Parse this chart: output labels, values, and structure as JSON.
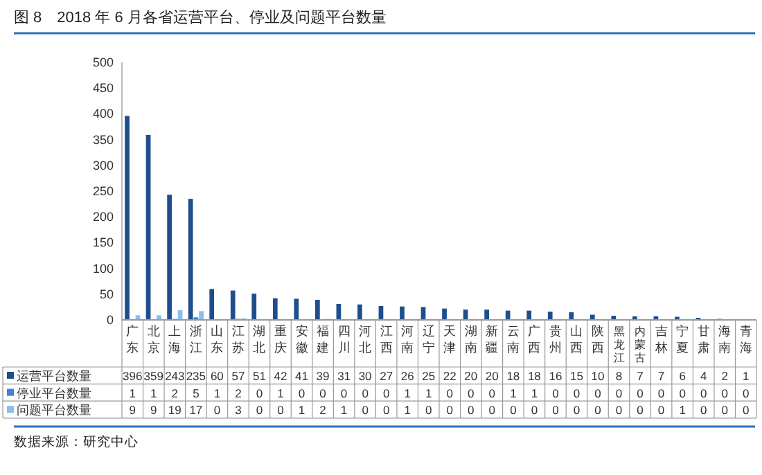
{
  "chart_data": {
    "type": "bar",
    "title": "图 8　2018 年 6 月各省运营平台、停业及问题平台数量",
    "categories": [
      "广东",
      "北京",
      "上海",
      "浙江",
      "山东",
      "江苏",
      "湖北",
      "重庆",
      "安徽",
      "福建",
      "四川",
      "河北",
      "江西",
      "河南",
      "辽宁",
      "天津",
      "湖南",
      "新疆",
      "云南",
      "广西",
      "贵州",
      "山西",
      "陕西",
      "黑龙江",
      "内蒙古",
      "吉林",
      "宁夏",
      "甘肃",
      "海南",
      "青海"
    ],
    "series": [
      {
        "name": "运营平台数量",
        "color": "#1f4e8c",
        "values": [
          396,
          359,
          243,
          235,
          60,
          57,
          51,
          42,
          41,
          39,
          31,
          30,
          27,
          26,
          25,
          22,
          20,
          20,
          18,
          18,
          16,
          15,
          10,
          8,
          7,
          7,
          6,
          4,
          2,
          1
        ]
      },
      {
        "name": "停业平台数量",
        "color": "#3a86d4",
        "values": [
          1,
          1,
          2,
          5,
          1,
          2,
          0,
          1,
          0,
          0,
          0,
          0,
          0,
          1,
          1,
          0,
          0,
          0,
          1,
          1,
          0,
          0,
          0,
          0,
          0,
          0,
          0,
          0,
          0,
          0
        ]
      },
      {
        "name": "问题平台数量",
        "color": "#86bff0",
        "values": [
          9,
          9,
          19,
          17,
          0,
          3,
          0,
          0,
          1,
          2,
          1,
          0,
          0,
          1,
          0,
          0,
          0,
          0,
          0,
          0,
          0,
          0,
          0,
          0,
          0,
          0,
          1,
          0,
          0,
          0
        ]
      }
    ],
    "ylim": [
      0,
      500
    ],
    "yticks": [
      0,
      50,
      100,
      150,
      200,
      250,
      300,
      350,
      400,
      450,
      500
    ],
    "data_labels": true,
    "legend": "bottom",
    "grid": false,
    "annotations": [
      "数据来源：研究中心"
    ]
  }
}
